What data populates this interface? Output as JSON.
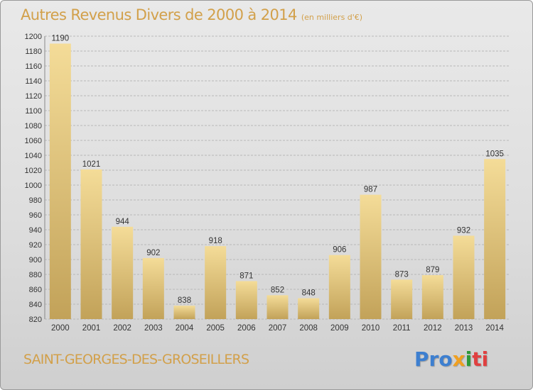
{
  "title": "Autres Revenus Divers de 2000 à 2014",
  "subtitle": "(en milliers d'€)",
  "commune": "SAINT-GEORGES-DES-GROSEILLERS",
  "logo": {
    "p1": "Pro",
    "p2": "x",
    "p3": "i",
    "p4": "ti"
  },
  "colors": {
    "bar_light": "#f4dc98",
    "bar_dark": "#c2a259",
    "title": "#d2a04a",
    "grid": "#b8b8b8"
  },
  "chart_data": {
    "type": "bar",
    "categories": [
      "2000",
      "2001",
      "2002",
      "2003",
      "2004",
      "2005",
      "2006",
      "2007",
      "2008",
      "2009",
      "2010",
      "2011",
      "2012",
      "2013",
      "2014"
    ],
    "values": [
      1190,
      1021,
      944,
      902,
      838,
      918,
      871,
      852,
      848,
      906,
      987,
      873,
      879,
      932,
      1035
    ],
    "ylim": [
      820,
      1200
    ],
    "yticks": [
      820,
      840,
      860,
      880,
      900,
      920,
      940,
      960,
      980,
      1000,
      1020,
      1040,
      1060,
      1080,
      1100,
      1120,
      1140,
      1160,
      1180,
      1200
    ],
    "xlabel": "",
    "ylabel": "",
    "grid": true,
    "data_labels": true
  }
}
